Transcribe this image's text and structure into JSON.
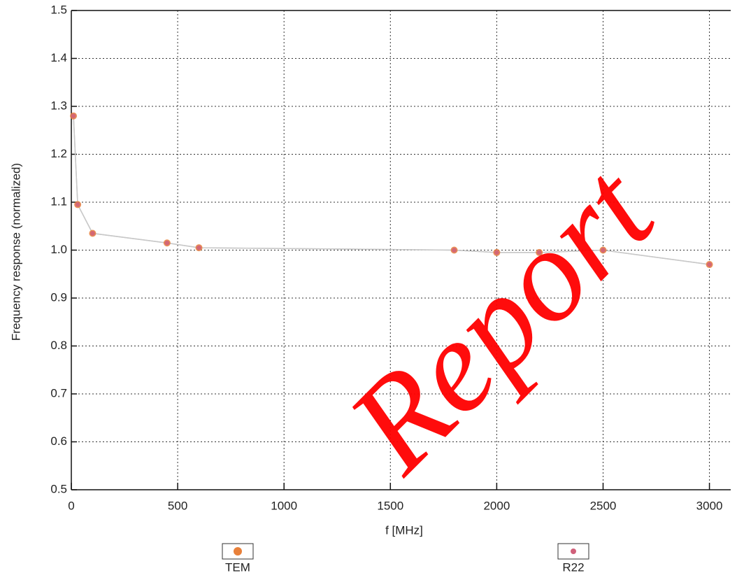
{
  "chart_data": {
    "type": "line",
    "y_label": "Frequency response (normalized)",
    "x_label": "f [MHz]",
    "x": [
      10,
      30,
      100,
      450,
      600,
      1800,
      2000,
      2200,
      2500,
      3000
    ],
    "series": [
      {
        "name": "TEM",
        "color": "#e8803a",
        "values": [
          1.28,
          1.095,
          1.035,
          1.015,
          1.005,
          1.0,
          0.995,
          0.995,
          1.0,
          0.97
        ]
      },
      {
        "name": "R22",
        "color": "#d0607a",
        "values": [
          1.28,
          1.095,
          1.035,
          1.015,
          1.005,
          1.0,
          0.995,
          0.995,
          1.0,
          0.97
        ]
      }
    ],
    "line_color": "#c8c8c8",
    "xlim": [
      0,
      3100
    ],
    "xticks": [
      0,
      500,
      1000,
      1500,
      2000,
      2500,
      3000
    ],
    "ylim": [
      0.5,
      1.5
    ],
    "yticks": [
      0.5,
      0.6,
      0.7,
      0.8,
      0.9,
      {
        "value": 1,
        "label": "1.0"
      },
      1.1,
      1.2,
      1.3,
      1.4,
      1.5
    ],
    "grid": true,
    "watermark": "Report"
  }
}
